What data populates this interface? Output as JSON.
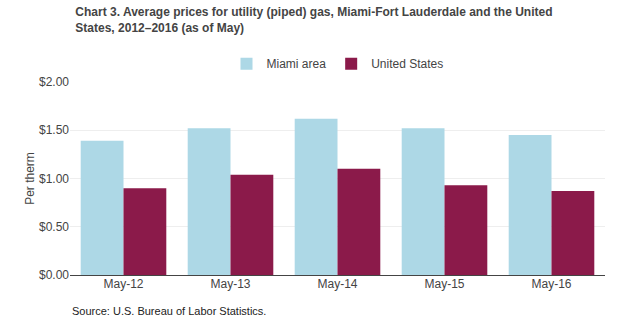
{
  "chart_data": {
    "type": "bar",
    "title": "Chart 3. Average prices for utility (piped) gas, Miami-Fort Lauderdale and the United\nStates, 2012–2016 (as of May)",
    "ylabel": "Per therm",
    "annotations": [
      "Source: U.S. Bureau of Labor Statistics."
    ],
    "categories": [
      "May-12",
      "May-13",
      "May-14",
      "May-15",
      "May-16"
    ],
    "series": [
      {
        "name": "Miami area",
        "color": "#ADD8E6",
        "values": [
          1.39,
          1.52,
          1.62,
          1.52,
          1.45
        ]
      },
      {
        "name": "United States",
        "color": "#8B1A4A",
        "values": [
          0.9,
          1.04,
          1.1,
          0.93,
          0.87
        ]
      }
    ],
    "ylim": [
      0,
      2.0
    ],
    "yticks": [
      {
        "value": 0.0,
        "label": "$0.00"
      },
      {
        "value": 0.5,
        "label": "$0.50"
      },
      {
        "value": 1.0,
        "label": "$1.00"
      },
      {
        "value": 1.5,
        "label": "$1.50"
      },
      {
        "value": 2.0,
        "label": "$2.00"
      }
    ],
    "grid": true,
    "legend": "top"
  }
}
